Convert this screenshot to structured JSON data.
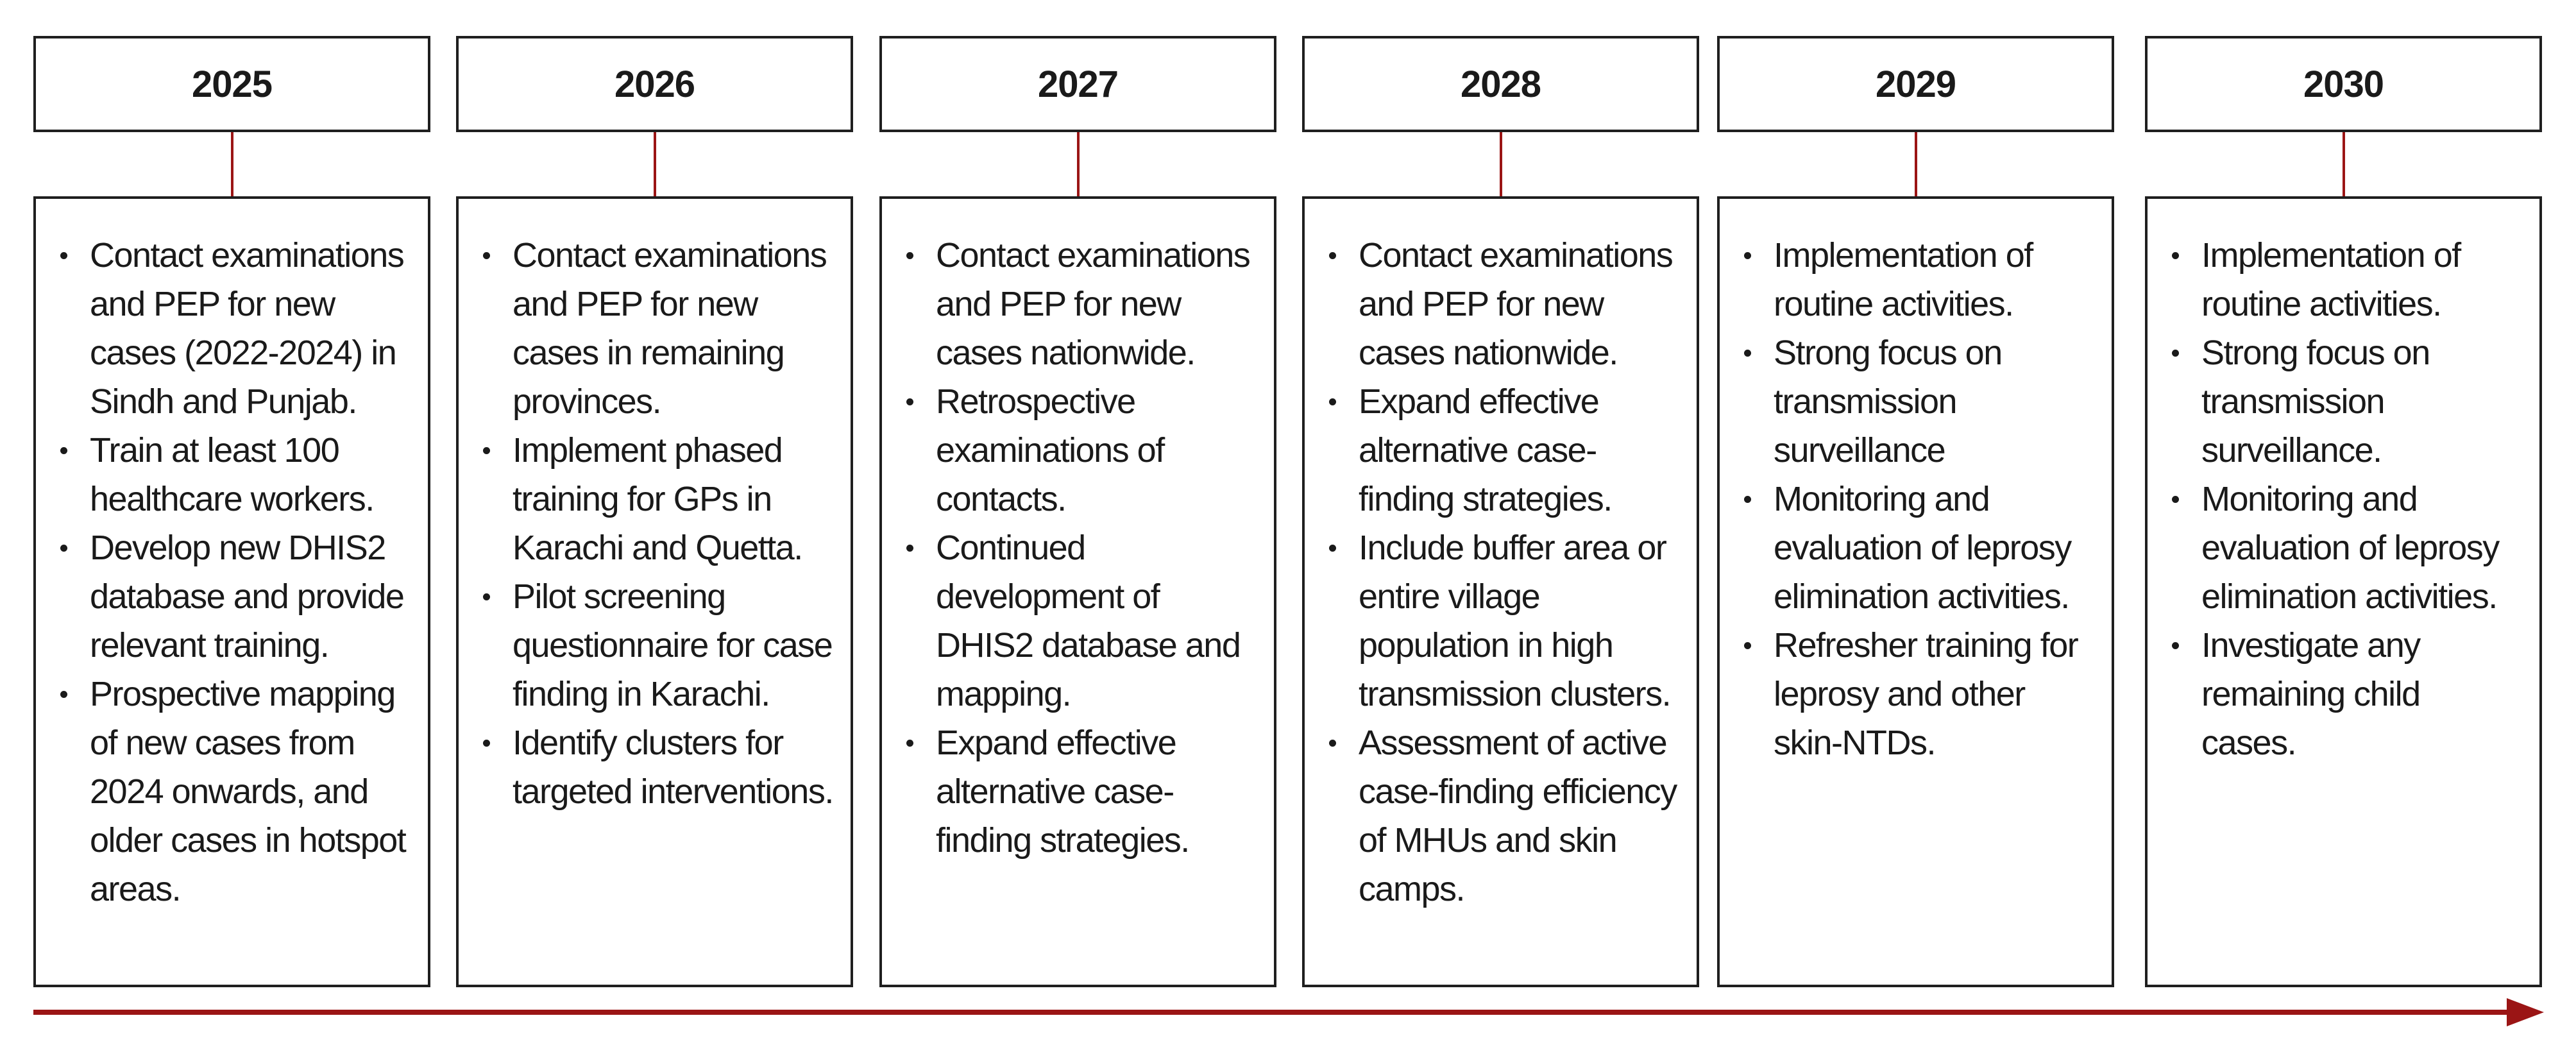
{
  "colors": {
    "accent": "#9b1515",
    "border": "#1f1f1f",
    "text": "#1a1a1a",
    "background": "#ffffff"
  },
  "columns": [
    {
      "year": "2025",
      "items": [
        "Contact examinations and PEP for new cases (2022-2024) in Sindh and Punjab.",
        "Train at least 100 healthcare workers.",
        "Develop new DHIS2 database and provide relevant training.",
        "Prospective mapping of new cases from 2024 onwards, and older cases in hotspot areas."
      ]
    },
    {
      "year": "2026",
      "items": [
        "Contact examinations and PEP for new cases in remaining provinces.",
        "Implement phased training for GPs in Karachi and Quetta.",
        "Pilot screening questionnaire for case finding in Karachi.",
        "Identify clusters for targeted interventions."
      ]
    },
    {
      "year": "2027",
      "items": [
        "Contact examinations and PEP for new cases nationwide.",
        "Retrospective examinations of contacts.",
        "Continued development of DHIS2 database and mapping.",
        "Expand effective alternative case-finding strategies."
      ]
    },
    {
      "year": "2028",
      "items": [
        "Contact examinations and PEP for new cases nationwide.",
        "Expand effective alternative case-finding strategies.",
        "Include buffer area or entire village population in high transmission clusters.",
        "Assessment of active case-finding efficiency of MHUs and skin camps."
      ]
    },
    {
      "year": "2029",
      "items": [
        "Implementation of routine activities.",
        "Strong focus on transmission surveillance",
        "Monitoring and evaluation of leprosy elimination activities.",
        "Refresher training for leprosy and other skin-NTDs."
      ]
    },
    {
      "year": "2030",
      "items": [
        "Implementation of routine activities.",
        "Strong focus on transmission surveillance.",
        "Monitoring and evaluation of leprosy elimination activities.",
        "Investigate any remaining child cases."
      ]
    }
  ]
}
